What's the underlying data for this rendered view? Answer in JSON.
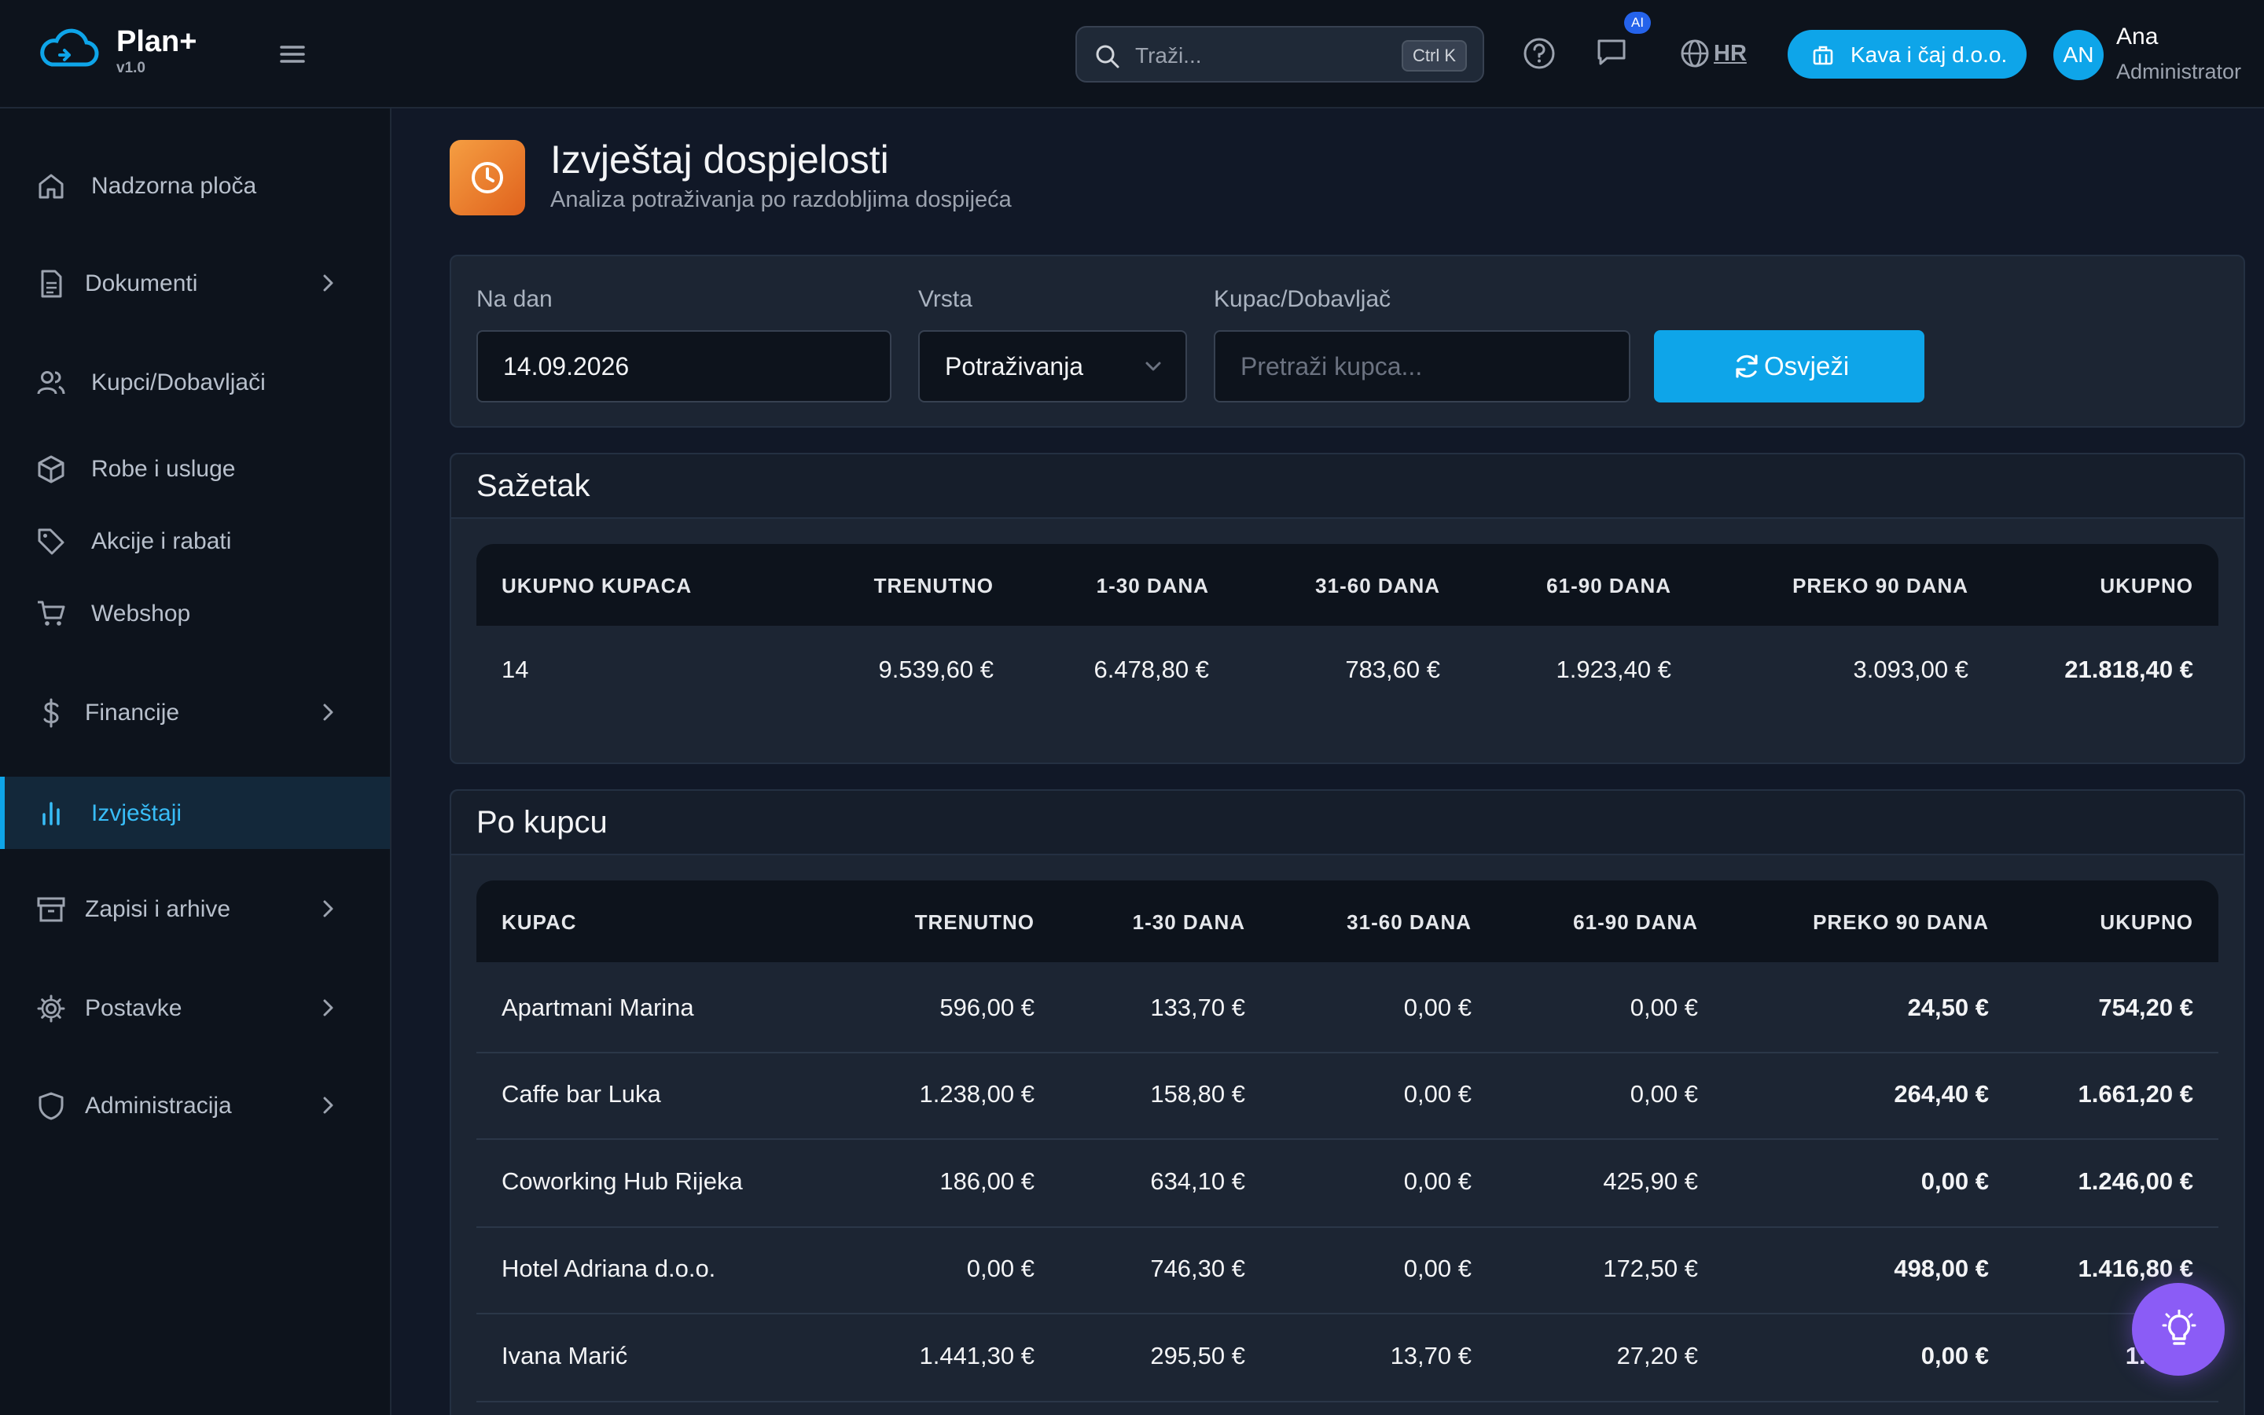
{
  "app": {
    "name": "Plan+",
    "version": "v1.0"
  },
  "header": {
    "search_placeholder": "Traži...",
    "search_shortcut": "Ctrl K",
    "ai_badge": "AI",
    "language": "HR",
    "company": "Kava i čaj d.o.o.",
    "user_initials": "AN",
    "user_name": "Ana",
    "user_role": "Administrator"
  },
  "sidebar": {
    "items": [
      {
        "label": "Nadzorna ploča",
        "icon": "home-icon"
      },
      {
        "label": "Dokumenti",
        "icon": "document-icon",
        "expandable": true
      },
      {
        "label": "Kupci/Dobavljači",
        "icon": "users-icon"
      },
      {
        "label": "Robe i usluge",
        "icon": "package-icon"
      },
      {
        "label": "Akcije i rabati",
        "icon": "tag-icon"
      },
      {
        "label": "Webshop",
        "icon": "cart-icon"
      },
      {
        "label": "Financije",
        "icon": "dollar-icon",
        "expandable": true
      },
      {
        "label": "Izvještaji",
        "icon": "bar-chart-icon",
        "active": true
      },
      {
        "label": "Zapisi i arhive",
        "icon": "archive-icon",
        "expandable": true
      },
      {
        "label": "Postavke",
        "icon": "gear-icon",
        "expandable": true
      },
      {
        "label": "Administracija",
        "icon": "shield-icon",
        "expandable": true
      }
    ]
  },
  "page": {
    "title": "Izvještaj dospjelosti",
    "subtitle": "Analiza potraživanja po razdobljima dospijeća"
  },
  "filters": {
    "date_label": "Na dan",
    "date_value": "14.09.2026",
    "type_label": "Vrsta",
    "type_value": "Potraživanja",
    "customer_label": "Kupac/Dobavljač",
    "customer_placeholder": "Pretraži kupca...",
    "refresh_label": "Osvježi"
  },
  "summary": {
    "title": "Sažetak",
    "headers": [
      "UKUPNO KUPACA",
      "TRENUTNO",
      "1-30 DANA",
      "31-60 DANA",
      "61-90 DANA",
      "PREKO 90 DANA",
      "UKUPNO"
    ],
    "values": [
      "14",
      "9.539,60 €",
      "6.478,80 €",
      "783,60 €",
      "1.923,40 €",
      "3.093,00 €",
      "21.818,40 €"
    ]
  },
  "by_customer": {
    "title": "Po kupcu",
    "headers": [
      "KUPAC",
      "TRENUTNO",
      "1-30 DANA",
      "31-60 DANA",
      "61-90 DANA",
      "PREKO 90 DANA",
      "UKUPNO"
    ],
    "rows": [
      [
        "Apartmani Marina",
        "596,00 €",
        "133,70 €",
        "0,00 €",
        "0,00 €",
        "24,50 €",
        "754,20 €"
      ],
      [
        "Caffe bar Luka",
        "1.238,00 €",
        "158,80 €",
        "0,00 €",
        "0,00 €",
        "264,40 €",
        "1.661,20 €"
      ],
      [
        "Coworking Hub Rijeka",
        "186,00 €",
        "634,10 €",
        "0,00 €",
        "425,90 €",
        "0,00 €",
        "1.246,00 €"
      ],
      [
        "Hotel Adriana d.o.o.",
        "0,00 €",
        "746,30 €",
        "0,00 €",
        "172,50 €",
        "498,00 €",
        "1.416,80 €"
      ],
      [
        "Ivana Marić",
        "1.441,30 €",
        "295,50 €",
        "13,70 €",
        "27,20 €",
        "0,00 €",
        "1.777,"
      ]
    ]
  },
  "fab": {
    "icon": "lightbulb-icon"
  },
  "colors": {
    "accent": "#0ea5e9",
    "page_icon": "#e9782f",
    "fab": "#8b5cf6",
    "background": "#111827"
  }
}
